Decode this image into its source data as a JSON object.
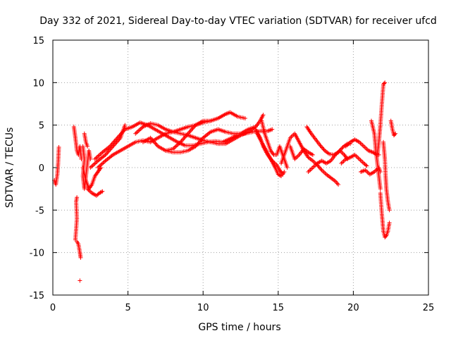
{
  "chart_data": {
    "type": "scatter",
    "title": "Day 332 of 2021, Sidereal Day-to-day VTEC variation (SDTVAR) for receiver ufcd",
    "xlabel": "GPS time / hours",
    "ylabel": "SDTVAR / TECUs",
    "xlim": [
      0,
      25
    ],
    "ylim": [
      -15,
      15
    ],
    "x_ticks": [
      0,
      5,
      10,
      15,
      20,
      25
    ],
    "y_ticks": [
      -15,
      -10,
      -5,
      0,
      5,
      10,
      15
    ],
    "x_tick_labels": [
      "0",
      "5",
      "10",
      "15",
      "20",
      "25"
    ],
    "y_tick_labels": [
      "-15",
      "-10",
      "-5",
      "0",
      "5",
      "10",
      "15"
    ],
    "grid": true,
    "marker": "+",
    "series_color": "#ff0000",
    "series": [
      {
        "name": "SDTVAR",
        "polylines": [
          [
            [
              0.1,
              -1.5
            ],
            [
              0.2,
              -2.0
            ],
            [
              0.3,
              -0.8
            ],
            [
              0.35,
              0.5
            ],
            [
              0.4,
              2.4
            ]
          ],
          [
            [
              1.4,
              4.8
            ],
            [
              1.5,
              3.5
            ],
            [
              1.6,
              2.0
            ],
            [
              1.7,
              1.5
            ],
            [
              1.8,
              2.5
            ],
            [
              1.9,
              1.0
            ]
          ],
          [
            [
              1.5,
              -8.5
            ],
            [
              1.6,
              -6.0
            ],
            [
              1.55,
              -4.0
            ],
            [
              1.6,
              -3.5
            ]
          ],
          [
            [
              1.6,
              -8.7
            ],
            [
              1.7,
              -9.0
            ],
            [
              1.8,
              -10.0
            ],
            [
              1.85,
              -10.6
            ]
          ],
          [
            [
              1.8,
              -13.3
            ]
          ],
          [
            [
              2.0,
              2.5
            ],
            [
              2.1,
              1.0
            ],
            [
              2.0,
              -1.0
            ],
            [
              2.1,
              -2.5
            ],
            [
              2.2,
              -1.0
            ],
            [
              2.3,
              0.5
            ],
            [
              2.4,
              2.0
            ],
            [
              2.5,
              1.0
            ]
          ],
          [
            [
              2.1,
              4.0
            ],
            [
              2.2,
              3.0
            ],
            [
              2.3,
              2.5
            ]
          ],
          [
            [
              2.0,
              0.0
            ],
            [
              2.2,
              -1.5
            ],
            [
              2.4,
              -2.5
            ],
            [
              2.6,
              -2.0
            ],
            [
              2.8,
              -1.0
            ],
            [
              3.0,
              -0.5
            ],
            [
              3.2,
              0.0
            ]
          ],
          [
            [
              2.3,
              -2.5
            ],
            [
              2.6,
              -3.0
            ],
            [
              2.9,
              -3.3
            ],
            [
              3.1,
              -3.0
            ],
            [
              3.3,
              -2.8
            ]
          ],
          [
            [
              2.5,
              0.0
            ],
            [
              3.0,
              0.8
            ],
            [
              3.5,
              1.5
            ],
            [
              4.0,
              2.5
            ],
            [
              4.5,
              3.5
            ],
            [
              4.8,
              5.0
            ]
          ],
          [
            [
              2.8,
              1.0
            ],
            [
              3.3,
              1.8
            ],
            [
              3.8,
              2.5
            ],
            [
              4.3,
              3.5
            ],
            [
              4.8,
              4.5
            ],
            [
              5.3,
              4.8
            ],
            [
              5.8,
              5.3
            ],
            [
              6.3,
              5.0
            ],
            [
              6.8,
              4.5
            ],
            [
              7.3,
              4.0
            ],
            [
              7.8,
              3.5
            ],
            [
              8.3,
              3.0
            ],
            [
              8.8,
              2.6
            ],
            [
              9.3,
              2.6
            ],
            [
              9.8,
              2.8
            ],
            [
              10.3,
              3.0
            ],
            [
              10.8,
              3.1
            ],
            [
              11.3,
              3.0
            ],
            [
              11.8,
              3.4
            ],
            [
              12.3,
              3.8
            ],
            [
              12.8,
              4.0
            ],
            [
              13.3,
              4.2
            ],
            [
              13.8,
              4.3
            ],
            [
              14.3,
              4.3
            ],
            [
              14.6,
              4.5
            ]
          ],
          [
            [
              3.0,
              0.0
            ],
            [
              3.5,
              0.8
            ],
            [
              4.0,
              1.5
            ],
            [
              4.5,
              2.0
            ],
            [
              5.0,
              2.5
            ],
            [
              5.5,
              3.0
            ],
            [
              6.0,
              3.2
            ],
            [
              6.5,
              3.0
            ],
            [
              7.0,
              3.5
            ],
            [
              7.5,
              4.0
            ],
            [
              8.0,
              4.2
            ],
            [
              8.5,
              4.0
            ],
            [
              9.0,
              3.8
            ],
            [
              9.5,
              3.5
            ],
            [
              10.0,
              3.2
            ],
            [
              10.5,
              3.0
            ],
            [
              11.0,
              2.8
            ],
            [
              11.5,
              2.8
            ],
            [
              12.0,
              3.3
            ],
            [
              12.5,
              3.8
            ],
            [
              13.0,
              4.2
            ],
            [
              13.5,
              4.8
            ],
            [
              13.8,
              5.5
            ],
            [
              14.0,
              6.2
            ]
          ],
          [
            [
              5.5,
              4.0
            ],
            [
              6.0,
              4.8
            ],
            [
              6.5,
              5.2
            ],
            [
              7.0,
              5.0
            ],
            [
              7.5,
              4.5
            ],
            [
              8.0,
              4.2
            ],
            [
              8.5,
              4.5
            ],
            [
              9.0,
              4.8
            ],
            [
              9.5,
              5.0
            ],
            [
              10.0,
              5.3
            ],
            [
              10.5,
              5.5
            ],
            [
              11.0,
              5.8
            ],
            [
              11.5,
              6.3
            ],
            [
              11.8,
              6.5
            ],
            [
              12.3,
              6.0
            ],
            [
              12.8,
              5.8
            ]
          ],
          [
            [
              6.0,
              3.0
            ],
            [
              6.5,
              3.5
            ],
            [
              7.0,
              2.5
            ],
            [
              7.5,
              2.0
            ],
            [
              8.0,
              2.2
            ],
            [
              8.5,
              3.0
            ],
            [
              9.0,
              4.0
            ],
            [
              9.5,
              5.0
            ],
            [
              10.0,
              5.5
            ],
            [
              10.5,
              5.5
            ]
          ],
          [
            [
              7.5,
              2.0
            ],
            [
              8.0,
              1.8
            ],
            [
              8.5,
              1.8
            ],
            [
              9.0,
              2.0
            ],
            [
              9.5,
              2.5
            ],
            [
              10.0,
              3.5
            ],
            [
              10.5,
              4.2
            ],
            [
              11.0,
              4.5
            ],
            [
              11.5,
              4.2
            ],
            [
              12.0,
              4.0
            ],
            [
              12.5,
              4.0
            ],
            [
              13.0,
              4.5
            ],
            [
              13.5,
              4.8
            ]
          ],
          [
            [
              13.5,
              4.5
            ],
            [
              13.8,
              3.5
            ],
            [
              14.0,
              2.5
            ],
            [
              14.3,
              1.5
            ],
            [
              14.6,
              0.8
            ],
            [
              14.9,
              0.3
            ],
            [
              15.1,
              -0.3
            ],
            [
              15.3,
              -0.8
            ],
            [
              15.4,
              -0.5
            ]
          ],
          [
            [
              13.6,
              4.0
            ],
            [
              13.9,
              3.0
            ],
            [
              14.2,
              2.0
            ],
            [
              14.5,
              1.0
            ],
            [
              14.8,
              0.0
            ],
            [
              15.0,
              -0.8
            ],
            [
              15.2,
              -1.0
            ]
          ],
          [
            [
              13.9,
              5.5
            ],
            [
              14.1,
              4.0
            ],
            [
              14.3,
              3.0
            ],
            [
              14.5,
              2.0
            ],
            [
              14.7,
              1.5
            ],
            [
              14.9,
              1.5
            ],
            [
              15.1,
              2.5
            ],
            [
              15.3,
              1.5
            ],
            [
              15.5,
              0.5
            ],
            [
              15.6,
              0.0
            ]
          ],
          [
            [
              15.2,
              0.5
            ],
            [
              15.5,
              2.0
            ],
            [
              15.8,
              3.5
            ],
            [
              16.1,
              4.0
            ],
            [
              16.4,
              3.0
            ],
            [
              16.7,
              2.0
            ],
            [
              17.0,
              1.2
            ],
            [
              17.3,
              0.8
            ],
            [
              17.6,
              0.3
            ],
            [
              17.9,
              -0.3
            ],
            [
              18.2,
              -0.8
            ],
            [
              18.5,
              -1.2
            ],
            [
              18.8,
              -1.6
            ],
            [
              19.0,
              -2.0
            ]
          ],
          [
            [
              15.8,
              2.5
            ],
            [
              16.1,
              1.0
            ],
            [
              16.4,
              1.5
            ],
            [
              16.7,
              2.2
            ],
            [
              17.0,
              1.8
            ],
            [
              17.3,
              1.5
            ]
          ],
          [
            [
              16.9,
              4.8
            ],
            [
              17.2,
              4.0
            ],
            [
              17.5,
              3.3
            ],
            [
              17.8,
              2.6
            ],
            [
              18.1,
              2.0
            ],
            [
              18.4,
              1.6
            ],
            [
              18.7,
              1.5
            ],
            [
              19.0,
              1.8
            ],
            [
              19.3,
              2.4
            ],
            [
              19.6,
              2.8
            ],
            [
              19.8,
              2.8
            ]
          ],
          [
            [
              17.0,
              -0.5
            ],
            [
              17.3,
              0.0
            ],
            [
              17.6,
              0.5
            ],
            [
              17.9,
              0.8
            ],
            [
              18.2,
              0.5
            ],
            [
              18.5,
              0.8
            ],
            [
              18.8,
              1.5
            ],
            [
              19.1,
              2.0
            ],
            [
              19.4,
              1.5
            ],
            [
              19.6,
              1.0
            ]
          ],
          [
            [
              19.5,
              2.5
            ],
            [
              19.8,
              3.0
            ],
            [
              20.1,
              3.3
            ],
            [
              20.4,
              3.0
            ],
            [
              20.7,
              2.5
            ],
            [
              21.0,
              2.0
            ],
            [
              21.3,
              1.8
            ],
            [
              21.6,
              1.5
            ],
            [
              21.7,
              1.5
            ]
          ],
          [
            [
              19.2,
              0.5
            ],
            [
              19.5,
              1.0
            ],
            [
              19.8,
              1.2
            ],
            [
              20.1,
              1.5
            ],
            [
              20.4,
              1.0
            ],
            [
              20.7,
              0.5
            ],
            [
              20.9,
              0.2
            ]
          ],
          [
            [
              20.5,
              -0.5
            ],
            [
              20.8,
              -0.3
            ],
            [
              21.1,
              -0.8
            ],
            [
              21.4,
              -0.5
            ],
            [
              21.7,
              0.0
            ],
            [
              21.8,
              -0.5
            ]
          ],
          [
            [
              21.2,
              5.5
            ],
            [
              21.4,
              4.0
            ],
            [
              21.5,
              2.0
            ],
            [
              21.6,
              0.5
            ],
            [
              21.7,
              -1.0
            ],
            [
              21.8,
              -2.5
            ]
          ],
          [
            [
              21.6,
              1.5
            ],
            [
              21.7,
              3.0
            ],
            [
              21.8,
              5.0
            ],
            [
              21.9,
              7.5
            ],
            [
              22.0,
              9.8
            ],
            [
              22.1,
              10.0
            ]
          ],
          [
            [
              21.8,
              -3.0
            ],
            [
              21.9,
              -5.5
            ],
            [
              22.0,
              -7.5
            ],
            [
              22.1,
              -8.2
            ],
            [
              22.2,
              -8.0
            ],
            [
              22.3,
              -7.5
            ],
            [
              22.4,
              -6.5
            ]
          ],
          [
            [
              22.0,
              3.0
            ],
            [
              22.1,
              1.0
            ],
            [
              22.15,
              -1.0
            ],
            [
              22.2,
              -2.5
            ],
            [
              22.3,
              -4.0
            ],
            [
              22.4,
              -5.0
            ]
          ],
          [
            [
              22.5,
              5.5
            ],
            [
              22.6,
              4.5
            ],
            [
              22.7,
              3.8
            ],
            [
              22.8,
              4.0
            ]
          ]
        ]
      }
    ]
  }
}
